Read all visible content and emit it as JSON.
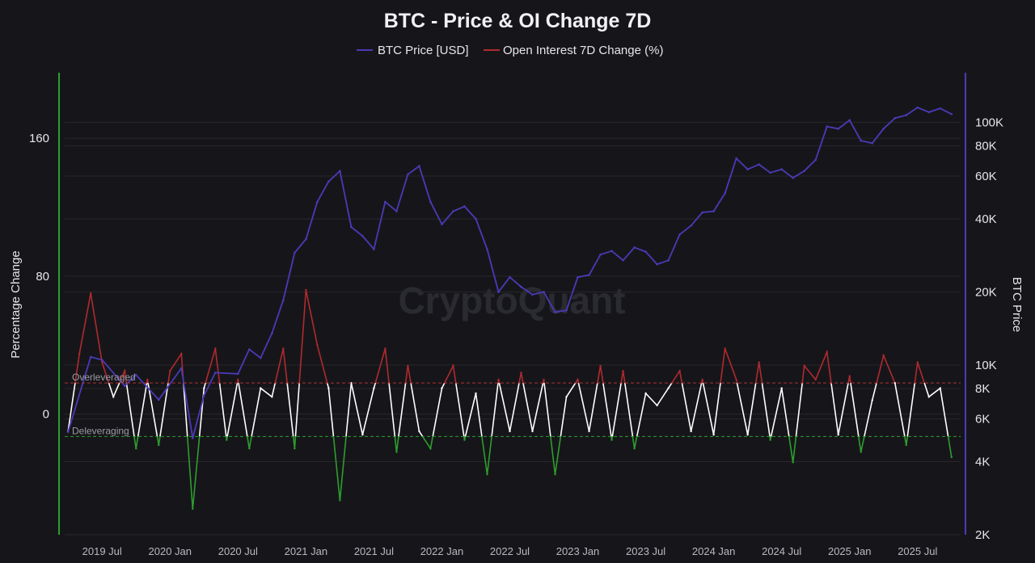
{
  "chart_data": {
    "type": "line",
    "title": "BTC - Price & OI Change 7D",
    "legend": {
      "placement": "top-center",
      "entries": [
        {
          "label": "BTC Price [USD]",
          "color": "#4a3ab8"
        },
        {
          "label": "Open Interest 7D Change (%)",
          "color": "#b02a2e"
        }
      ]
    },
    "watermark": "CryptoQuant",
    "x_axis": {
      "ticks": [
        "2019 Jul",
        "2020 Jan",
        "2020 Jul",
        "2021 Jan",
        "2021 Jul",
        "2022 Jan",
        "2022 Jul",
        "2023 Jan",
        "2023 Jul",
        "2024 Jan",
        "2024 Jul",
        "2025 Jan",
        "2025 Jul"
      ],
      "range": [
        "2019-04",
        "2025-10"
      ]
    },
    "y_left": {
      "label": "Percentage Change",
      "ticks": [
        "160",
        "80",
        "0"
      ],
      "tick_values": [
        160,
        80,
        0
      ],
      "range": [
        -70,
        198
      ],
      "color": "#2e9e2e"
    },
    "y_right": {
      "label": "BTC Price",
      "scale": "log",
      "ticks": [
        "100K",
        "80K",
        "60K",
        "40K",
        "20K",
        "10K",
        "8K",
        "6K",
        "4K",
        "2K"
      ],
      "tick_values": [
        100000,
        80000,
        60000,
        40000,
        20000,
        10000,
        8000,
        6000,
        4000,
        2000
      ],
      "range": [
        2000,
        160000
      ],
      "color": "#4a3ab8"
    },
    "reference_lines": [
      {
        "label": "Overleveraged",
        "value": 18,
        "color": "#b03030"
      },
      {
        "label": "Deleveraging",
        "value": -13,
        "color": "#2e9e2e"
      }
    ],
    "series": [
      {
        "name": "BTC Price [USD]",
        "axis": "right",
        "color": "#4a3ab8",
        "points": [
          [
            "2019-04",
            5300
          ],
          [
            "2019-06",
            10800
          ],
          [
            "2019-07",
            10500
          ],
          [
            "2019-09",
            8200
          ],
          [
            "2019-10",
            9100
          ],
          [
            "2019-12",
            7200
          ],
          [
            "2020-02",
            9700
          ],
          [
            "2020-03",
            5000
          ],
          [
            "2020-04",
            7500
          ],
          [
            "2020-05",
            9300
          ],
          [
            "2020-07",
            9200
          ],
          [
            "2020-08",
            11600
          ],
          [
            "2020-09",
            10700
          ],
          [
            "2020-10",
            13500
          ],
          [
            "2020-11",
            18500
          ],
          [
            "2020-12",
            29000
          ],
          [
            "2021-01",
            33000
          ],
          [
            "2021-02",
            47000
          ],
          [
            "2021-03",
            57000
          ],
          [
            "2021-04",
            63000
          ],
          [
            "2021-05",
            37000
          ],
          [
            "2021-06",
            34000
          ],
          [
            "2021-07",
            30000
          ],
          [
            "2021-08",
            47000
          ],
          [
            "2021-09",
            43000
          ],
          [
            "2021-10",
            61000
          ],
          [
            "2021-11",
            66000
          ],
          [
            "2021-12",
            47000
          ],
          [
            "2022-01",
            38000
          ],
          [
            "2022-02",
            43000
          ],
          [
            "2022-03",
            45000
          ],
          [
            "2022-04",
            40000
          ],
          [
            "2022-05",
            30000
          ],
          [
            "2022-06",
            20000
          ],
          [
            "2022-07",
            23000
          ],
          [
            "2022-08",
            21000
          ],
          [
            "2022-09",
            19500
          ],
          [
            "2022-10",
            20000
          ],
          [
            "2022-11",
            16500
          ],
          [
            "2022-12",
            16800
          ],
          [
            "2023-01",
            23000
          ],
          [
            "2023-02",
            23500
          ],
          [
            "2023-03",
            28500
          ],
          [
            "2023-04",
            29500
          ],
          [
            "2023-05",
            27000
          ],
          [
            "2023-06",
            30500
          ],
          [
            "2023-07",
            29300
          ],
          [
            "2023-08",
            26000
          ],
          [
            "2023-09",
            27000
          ],
          [
            "2023-10",
            34500
          ],
          [
            "2023-11",
            37500
          ],
          [
            "2023-12",
            42500
          ],
          [
            "2024-01",
            43000
          ],
          [
            "2024-02",
            51000
          ],
          [
            "2024-03",
            71000
          ],
          [
            "2024-04",
            64000
          ],
          [
            "2024-05",
            67000
          ],
          [
            "2024-06",
            62000
          ],
          [
            "2024-07",
            64000
          ],
          [
            "2024-08",
            59000
          ],
          [
            "2024-09",
            63000
          ],
          [
            "2024-10",
            70000
          ],
          [
            "2024-11",
            96000
          ],
          [
            "2024-12",
            94000
          ],
          [
            "2025-01",
            102000
          ],
          [
            "2025-02",
            84000
          ],
          [
            "2025-03",
            82000
          ],
          [
            "2025-04",
            94000
          ],
          [
            "2025-05",
            104000
          ],
          [
            "2025-06",
            107000
          ],
          [
            "2025-07",
            115000
          ],
          [
            "2025-08",
            110000
          ],
          [
            "2025-09",
            114000
          ],
          [
            "2025-10",
            108000
          ]
        ]
      },
      {
        "name": "Open Interest 7D Change (%)",
        "axis": "left",
        "color": "#b02a2e",
        "over_color": "#b02a2e",
        "mid_color": "#ffffff",
        "under_color": "#2e9e2e",
        "points": [
          [
            "2019-04",
            -10
          ],
          [
            "2019-05",
            35
          ],
          [
            "2019-06",
            70
          ],
          [
            "2019-07",
            30
          ],
          [
            "2019-08",
            10
          ],
          [
            "2019-09",
            25
          ],
          [
            "2019-10",
            -20
          ],
          [
            "2019-11",
            20
          ],
          [
            "2019-12",
            -18
          ],
          [
            "2020-01",
            25
          ],
          [
            "2020-02",
            35
          ],
          [
            "2020-03",
            -55
          ],
          [
            "2020-04",
            15
          ],
          [
            "2020-05",
            38
          ],
          [
            "2020-06",
            -15
          ],
          [
            "2020-07",
            20
          ],
          [
            "2020-08",
            -20
          ],
          [
            "2020-09",
            15
          ],
          [
            "2020-10",
            10
          ],
          [
            "2020-11",
            38
          ],
          [
            "2020-12",
            -20
          ],
          [
            "2021-01",
            72
          ],
          [
            "2021-02",
            40
          ],
          [
            "2021-03",
            15
          ],
          [
            "2021-04",
            -50
          ],
          [
            "2021-05",
            18
          ],
          [
            "2021-06",
            -12
          ],
          [
            "2021-07",
            15
          ],
          [
            "2021-08",
            38
          ],
          [
            "2021-09",
            -22
          ],
          [
            "2021-10",
            28
          ],
          [
            "2021-11",
            -10
          ],
          [
            "2021-12",
            -20
          ],
          [
            "2022-01",
            15
          ],
          [
            "2022-02",
            28
          ],
          [
            "2022-03",
            -15
          ],
          [
            "2022-04",
            12
          ],
          [
            "2022-05",
            -35
          ],
          [
            "2022-06",
            20
          ],
          [
            "2022-07",
            -10
          ],
          [
            "2022-08",
            24
          ],
          [
            "2022-09",
            -10
          ],
          [
            "2022-10",
            20
          ],
          [
            "2022-11",
            -35
          ],
          [
            "2022-12",
            10
          ],
          [
            "2023-01",
            20
          ],
          [
            "2023-02",
            -10
          ],
          [
            "2023-03",
            28
          ],
          [
            "2023-04",
            -15
          ],
          [
            "2023-05",
            25
          ],
          [
            "2023-06",
            -20
          ],
          [
            "2023-07",
            12
          ],
          [
            "2023-08",
            5
          ],
          [
            "2023-09",
            15
          ],
          [
            "2023-10",
            25
          ],
          [
            "2023-11",
            -10
          ],
          [
            "2023-12",
            20
          ],
          [
            "2024-01",
            -12
          ],
          [
            "2024-02",
            38
          ],
          [
            "2024-03",
            20
          ],
          [
            "2024-04",
            -12
          ],
          [
            "2024-05",
            30
          ],
          [
            "2024-06",
            -15
          ],
          [
            "2024-07",
            15
          ],
          [
            "2024-08",
            -28
          ],
          [
            "2024-09",
            28
          ],
          [
            "2024-10",
            20
          ],
          [
            "2024-11",
            36
          ],
          [
            "2024-12",
            -12
          ],
          [
            "2025-01",
            22
          ],
          [
            "2025-02",
            -22
          ],
          [
            "2025-03",
            8
          ],
          [
            "2025-04",
            34
          ],
          [
            "2025-05",
            18
          ],
          [
            "2025-06",
            -18
          ],
          [
            "2025-07",
            30
          ],
          [
            "2025-08",
            10
          ],
          [
            "2025-09",
            15
          ],
          [
            "2025-10",
            -25
          ]
        ]
      }
    ]
  }
}
